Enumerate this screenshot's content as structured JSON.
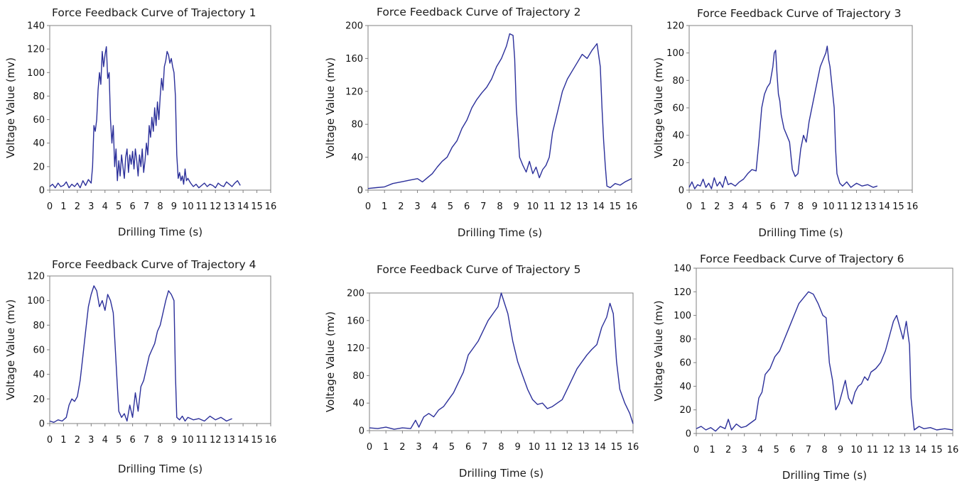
{
  "chart_data": [
    {
      "type": "line",
      "title": "Force Feedback Curve of Trajectory 1",
      "xlabel": "Drilling Time (s)",
      "ylabel": "Voltage Value (mv)",
      "xlim": [
        0,
        16
      ],
      "ylim": [
        0,
        140
      ],
      "xticks": [
        "0",
        "1",
        "2",
        "3",
        "4",
        "5",
        "6",
        "7",
        "8",
        "9",
        "10",
        "11",
        "12",
        "13",
        "14",
        "15",
        "16"
      ],
      "yticks": [
        "0",
        "20",
        "40",
        "60",
        "80",
        "100",
        "120",
        "140"
      ],
      "grid": false,
      "series": [
        {
          "color": "#2b2f9a",
          "x": [
            0,
            0.2,
            0.4,
            0.6,
            0.8,
            1.0,
            1.2,
            1.4,
            1.6,
            1.8,
            2.0,
            2.2,
            2.4,
            2.6,
            2.8,
            3.0,
            3.1,
            3.2,
            3.3,
            3.4,
            3.5,
            3.6,
            3.7,
            3.8,
            3.9,
            4.0,
            4.1,
            4.2,
            4.3,
            4.4,
            4.5,
            4.6,
            4.7,
            4.8,
            4.9,
            5.0,
            5.1,
            5.2,
            5.3,
            5.4,
            5.5,
            5.6,
            5.7,
            5.8,
            5.9,
            6.0,
            6.1,
            6.2,
            6.3,
            6.4,
            6.5,
            6.6,
            6.7,
            6.8,
            6.9,
            7.0,
            7.1,
            7.2,
            7.3,
            7.4,
            7.5,
            7.6,
            7.7,
            7.8,
            7.9,
            8.0,
            8.1,
            8.2,
            8.3,
            8.4,
            8.5,
            8.6,
            8.7,
            8.8,
            8.9,
            9.0,
            9.1,
            9.2,
            9.3,
            9.4,
            9.5,
            9.6,
            9.7,
            9.8,
            9.9,
            10.0,
            10.2,
            10.4,
            10.6,
            10.8,
            11.0,
            11.2,
            11.4,
            11.6,
            11.8,
            12.0,
            12.2,
            12.4,
            12.6,
            12.8,
            13.0,
            13.2,
            13.4,
            13.6,
            13.8
          ],
          "y": [
            3,
            5,
            2,
            6,
            3,
            4,
            7,
            2,
            5,
            3,
            6,
            2,
            8,
            4,
            9,
            6,
            20,
            55,
            50,
            60,
            85,
            100,
            90,
            118,
            105,
            115,
            122,
            95,
            100,
            60,
            40,
            55,
            20,
            35,
            8,
            25,
            12,
            30,
            20,
            10,
            28,
            35,
            15,
            30,
            22,
            33,
            18,
            35,
            25,
            12,
            30,
            20,
            35,
            15,
            25,
            40,
            30,
            55,
            45,
            62,
            50,
            70,
            55,
            75,
            60,
            80,
            95,
            85,
            105,
            110,
            118,
            115,
            108,
            112,
            105,
            100,
            80,
            30,
            10,
            15,
            8,
            12,
            5,
            18,
            8,
            10,
            6,
            3,
            5,
            2,
            4,
            6,
            3,
            5,
            4,
            2,
            6,
            4,
            3,
            7,
            5,
            3,
            6,
            8,
            4
          ]
        }
      ]
    },
    {
      "type": "line",
      "title": "Force Feedback Curve of Trajectory 2",
      "xlabel": "Drilling Time (s)",
      "ylabel": "Voltage Value (mv)",
      "xlim": [
        0,
        16
      ],
      "ylim": [
        0,
        200
      ],
      "xticks": [
        "0",
        "1",
        "2",
        "3",
        "4",
        "5",
        "6",
        "7",
        "8",
        "9",
        "10",
        "11",
        "12",
        "13",
        "14",
        "15",
        "16"
      ],
      "yticks": [
        "0",
        "40",
        "80",
        "120",
        "160",
        "200"
      ],
      "grid": false,
      "series": [
        {
          "color": "#2b2f9a",
          "x": [
            0,
            0.5,
            1.0,
            1.5,
            2.0,
            2.5,
            3.0,
            3.3,
            3.6,
            3.9,
            4.2,
            4.5,
            4.8,
            5.1,
            5.4,
            5.7,
            6.0,
            6.3,
            6.6,
            6.9,
            7.2,
            7.5,
            7.8,
            8.1,
            8.4,
            8.6,
            8.8,
            8.9,
            9.0,
            9.2,
            9.4,
            9.6,
            9.8,
            10.0,
            10.2,
            10.4,
            10.6,
            10.8,
            11.0,
            11.2,
            11.5,
            11.8,
            12.1,
            12.4,
            12.7,
            13.0,
            13.3,
            13.6,
            13.9,
            14.1,
            14.2,
            14.3,
            14.4,
            14.5,
            14.7,
            15.0,
            15.3,
            15.6,
            16.0
          ],
          "y": [
            2,
            3,
            4,
            8,
            10,
            12,
            14,
            10,
            15,
            20,
            28,
            35,
            40,
            52,
            60,
            75,
            85,
            100,
            110,
            118,
            125,
            135,
            150,
            160,
            175,
            190,
            188,
            160,
            100,
            40,
            30,
            22,
            35,
            20,
            28,
            15,
            25,
            30,
            40,
            70,
            95,
            120,
            135,
            145,
            155,
            165,
            160,
            170,
            178,
            150,
            100,
            60,
            30,
            5,
            3,
            8,
            6,
            10,
            14
          ]
        }
      ]
    },
    {
      "type": "line",
      "title": "Force Feedback Curve of Trajectory 3",
      "xlabel": "Drilling Time (s)",
      "ylabel": "Voltage Value (mv)",
      "xlim": [
        0,
        16
      ],
      "ylim": [
        0,
        120
      ],
      "xticks": [
        "0",
        "1",
        "2",
        "3",
        "4",
        "5",
        "6",
        "7",
        "8",
        "9",
        "10",
        "11",
        "12",
        "13",
        "14",
        "15",
        "16"
      ],
      "yticks": [
        "0",
        "20",
        "40",
        "60",
        "80",
        "100",
        "120"
      ],
      "grid": false,
      "series": [
        {
          "color": "#2b2f9a",
          "x": [
            0,
            0.2,
            0.4,
            0.6,
            0.8,
            1.0,
            1.2,
            1.4,
            1.6,
            1.8,
            2.0,
            2.2,
            2.4,
            2.6,
            2.8,
            3.0,
            3.3,
            3.6,
            3.9,
            4.2,
            4.5,
            4.8,
            5.0,
            5.2,
            5.4,
            5.6,
            5.8,
            6.0,
            6.1,
            6.2,
            6.3,
            6.4,
            6.5,
            6.6,
            6.8,
            7.0,
            7.2,
            7.4,
            7.6,
            7.8,
            8.0,
            8.2,
            8.4,
            8.6,
            8.8,
            9.0,
            9.2,
            9.4,
            9.6,
            9.8,
            9.9,
            10.0,
            10.1,
            10.2,
            10.3,
            10.4,
            10.5,
            10.6,
            10.8,
            11.0,
            11.3,
            11.6,
            12.0,
            12.4,
            12.8,
            13.2,
            13.5
          ],
          "y": [
            2,
            6,
            1,
            4,
            3,
            8,
            2,
            5,
            1,
            9,
            3,
            6,
            2,
            10,
            4,
            5,
            3,
            6,
            8,
            12,
            15,
            14,
            35,
            60,
            70,
            75,
            78,
            90,
            100,
            102,
            85,
            70,
            65,
            55,
            45,
            40,
            35,
            15,
            10,
            12,
            30,
            40,
            35,
            50,
            60,
            70,
            80,
            90,
            95,
            100,
            105,
            95,
            90,
            80,
            70,
            60,
            30,
            12,
            5,
            3,
            6,
            2,
            5,
            3,
            4,
            2,
            3
          ]
        }
      ]
    },
    {
      "type": "line",
      "title": "Force Feedback Curve of Trajectory 4",
      "xlabel": "Drilling Time (s)",
      "ylabel": "Voltage Value (mv)",
      "xlim": [
        0,
        16
      ],
      "ylim": [
        0,
        120
      ],
      "xticks": [
        "0",
        "1",
        "2",
        "3",
        "4",
        "5",
        "6",
        "7",
        "8",
        "9",
        "10",
        "11",
        "12",
        "13",
        "14",
        "15",
        "16"
      ],
      "yticks": [
        "0",
        "20",
        "40",
        "60",
        "80",
        "100",
        "120"
      ],
      "grid": false,
      "series": [
        {
          "color": "#2b2f9a",
          "x": [
            0,
            0.3,
            0.6,
            0.9,
            1.2,
            1.4,
            1.6,
            1.8,
            2.0,
            2.2,
            2.4,
            2.6,
            2.8,
            3.0,
            3.2,
            3.4,
            3.6,
            3.8,
            4.0,
            4.2,
            4.4,
            4.6,
            4.7,
            4.8,
            4.9,
            5.0,
            5.2,
            5.4,
            5.6,
            5.8,
            6.0,
            6.2,
            6.4,
            6.6,
            6.8,
            7.0,
            7.2,
            7.4,
            7.6,
            7.8,
            8.0,
            8.2,
            8.4,
            8.6,
            8.8,
            9.0,
            9.1,
            9.2,
            9.4,
            9.6,
            9.8,
            10.0,
            10.4,
            10.8,
            11.2,
            11.6,
            12.0,
            12.4,
            12.8,
            13.2
          ],
          "y": [
            2,
            1,
            3,
            2,
            5,
            15,
            20,
            18,
            22,
            35,
            55,
            75,
            95,
            105,
            112,
            108,
            95,
            100,
            92,
            105,
            100,
            90,
            70,
            50,
            30,
            10,
            5,
            8,
            2,
            15,
            5,
            25,
            10,
            30,
            35,
            45,
            55,
            60,
            65,
            75,
            80,
            90,
            100,
            108,
            105,
            100,
            40,
            5,
            3,
            6,
            2,
            5,
            3,
            4,
            2,
            6,
            3,
            5,
            2,
            4
          ]
        }
      ]
    },
    {
      "type": "line",
      "title": "Force Feedback Curve of Trajectory 5",
      "xlabel": "Drilling Time (s)",
      "ylabel": "Voltage Value (mv)",
      "xlim": [
        0,
        16
      ],
      "ylim": [
        0,
        200
      ],
      "xticks": [
        "0",
        "1",
        "2",
        "3",
        "4",
        "5",
        "6",
        "7",
        "8",
        "9",
        "10",
        "11",
        "12",
        "13",
        "14",
        "15",
        "16"
      ],
      "yticks": [
        "0",
        "40",
        "80",
        "120",
        "160",
        "200"
      ],
      "grid": false,
      "series": [
        {
          "color": "#2b2f9a",
          "x": [
            0,
            0.5,
            1.0,
            1.5,
            2.0,
            2.5,
            2.8,
            3.0,
            3.3,
            3.6,
            3.9,
            4.2,
            4.5,
            4.8,
            5.1,
            5.4,
            5.7,
            6.0,
            6.3,
            6.6,
            6.9,
            7.2,
            7.5,
            7.8,
            8.0,
            8.2,
            8.4,
            8.7,
            9.0,
            9.3,
            9.6,
            9.9,
            10.2,
            10.5,
            10.8,
            11.1,
            11.4,
            11.7,
            12.0,
            12.3,
            12.6,
            12.9,
            13.2,
            13.5,
            13.8,
            14.1,
            14.4,
            14.6,
            14.8,
            15.0,
            15.2,
            15.5,
            15.8,
            16.0
          ],
          "y": [
            4,
            3,
            5,
            2,
            4,
            3,
            15,
            5,
            20,
            25,
            20,
            30,
            35,
            45,
            55,
            70,
            85,
            110,
            120,
            130,
            145,
            160,
            170,
            180,
            200,
            185,
            170,
            130,
            100,
            80,
            60,
            45,
            38,
            40,
            32,
            35,
            40,
            45,
            60,
            75,
            90,
            100,
            110,
            118,
            125,
            150,
            165,
            185,
            170,
            100,
            60,
            40,
            25,
            10
          ]
        }
      ]
    },
    {
      "type": "line",
      "title": "Force Feedback Curve of Trajectory 6",
      "xlabel": "Drilling Time (s)",
      "ylabel": "Voltage Value (mv)",
      "xlim": [
        0,
        16
      ],
      "ylim": [
        0,
        140
      ],
      "xticks": [
        "0",
        "1",
        "2",
        "3",
        "4",
        "5",
        "6",
        "7",
        "8",
        "9",
        "10",
        "11",
        "12",
        "13",
        "14",
        "15",
        "16"
      ],
      "yticks": [
        "0",
        "20",
        "40",
        "60",
        "80",
        "100",
        "120",
        "140"
      ],
      "grid": false,
      "series": [
        {
          "color": "#2b2f9a",
          "x": [
            0,
            0.3,
            0.6,
            0.9,
            1.2,
            1.5,
            1.8,
            2.0,
            2.2,
            2.5,
            2.8,
            3.1,
            3.4,
            3.7,
            3.9,
            4.1,
            4.3,
            4.6,
            4.9,
            5.2,
            5.5,
            5.8,
            6.1,
            6.4,
            6.7,
            7.0,
            7.3,
            7.6,
            7.9,
            8.1,
            8.3,
            8.5,
            8.7,
            8.9,
            9.1,
            9.3,
            9.5,
            9.7,
            9.9,
            10.1,
            10.3,
            10.5,
            10.7,
            10.9,
            11.2,
            11.5,
            11.8,
            12.1,
            12.3,
            12.5,
            12.7,
            12.9,
            13.1,
            13.2,
            13.3,
            13.4,
            13.6,
            13.9,
            14.2,
            14.6,
            15.0,
            15.5,
            16.0
          ],
          "y": [
            4,
            6,
            3,
            5,
            2,
            6,
            4,
            12,
            3,
            8,
            5,
            6,
            9,
            12,
            30,
            35,
            50,
            55,
            65,
            70,
            80,
            90,
            100,
            110,
            115,
            120,
            118,
            110,
            100,
            98,
            60,
            45,
            20,
            25,
            35,
            45,
            30,
            25,
            35,
            40,
            42,
            48,
            45,
            52,
            55,
            60,
            70,
            85,
            95,
            100,
            90,
            80,
            95,
            85,
            75,
            30,
            3,
            6,
            4,
            5,
            3,
            4,
            3
          ]
        }
      ]
    }
  ]
}
